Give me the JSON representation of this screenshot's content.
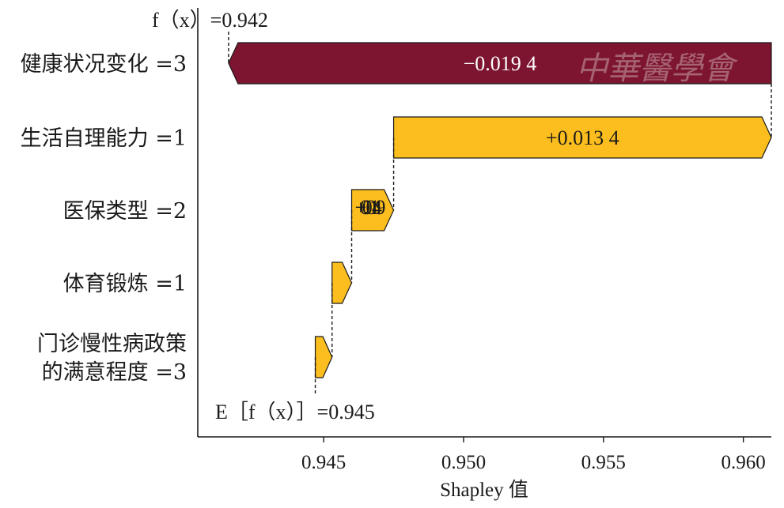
{
  "chart_data": {
    "type": "waterfall",
    "xlabel": "Shapley 值",
    "xlim": [
      0.9405,
      0.961
    ],
    "xticks": [
      "0.945",
      "0.950",
      "0.955",
      "0.960"
    ],
    "xtick_values": [
      0.945,
      0.95,
      0.955,
      0.96
    ],
    "fx_label": "f（x）=0.942",
    "fx_value": 0.9416,
    "base_label": "E［f（x）］=0.945",
    "base_value": 0.9447,
    "colors": {
      "negative": "#7d1530",
      "positive": "#fbbe1e"
    },
    "features": [
      {
        "label": [
          "健康状况变化 =3"
        ],
        "start": 0.961,
        "end": 0.9416,
        "value_label": "−0.019 4",
        "sign": "negative"
      },
      {
        "label": [
          "生活自理能力 =1"
        ],
        "start": 0.9475,
        "end": 0.961,
        "value_label": "+0.013 4",
        "sign": "positive"
      },
      {
        "label": [
          "医保类型 =2"
        ],
        "start": 0.946,
        "end": 0.9475,
        "value_label": "+0.001 49",
        "sign": "positive"
      },
      {
        "label": [
          "体育锻炼 =1"
        ],
        "start": 0.9453,
        "end": 0.946,
        "value_label": "",
        "sign": "positive"
      },
      {
        "label": [
          "门诊慢性病政策",
          "的满意程度 =3"
        ],
        "start": 0.9447,
        "end": 0.9453,
        "value_label": "",
        "sign": "positive"
      }
    ]
  },
  "watermark": "中華醫學會"
}
